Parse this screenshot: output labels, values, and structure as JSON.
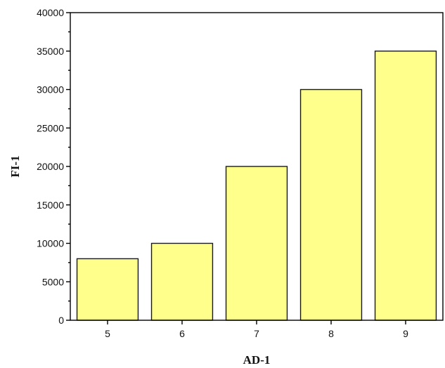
{
  "chart_data": {
    "type": "bar",
    "title": "",
    "xlabel": "AD-1",
    "ylabel": "FI-1",
    "categories": [
      "5",
      "6",
      "7",
      "8",
      "9"
    ],
    "values": [
      8000,
      10000,
      20000,
      30000,
      35000
    ],
    "ylim": [
      0,
      40000
    ],
    "yticks": [
      0,
      5000,
      10000,
      15000,
      20000,
      25000,
      30000,
      35000,
      40000
    ],
    "y_minor_tick_step": 2500,
    "grid": false,
    "legend": "none",
    "bar_color": "#ffff8c",
    "bar_edge_color": "#1a1a1a"
  }
}
